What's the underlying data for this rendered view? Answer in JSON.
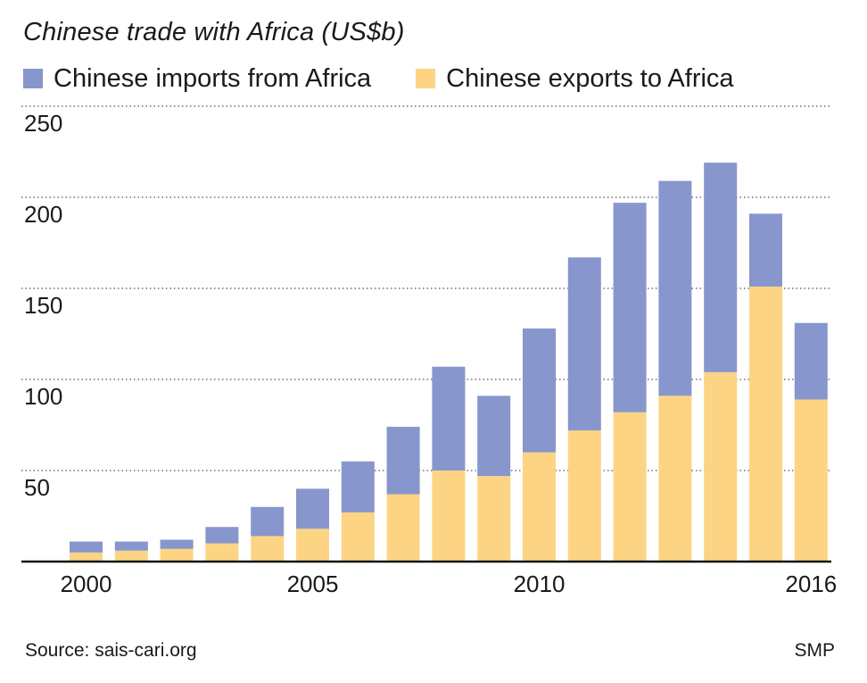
{
  "title": "Chinese trade with Africa (US$b)",
  "source": "Source: sais-cari.org",
  "credit": "SMP",
  "colors": {
    "imports": "#8796cc",
    "exports": "#fdd484",
    "grid": "#555555",
    "axis": "#111111"
  },
  "chart_data": {
    "type": "bar",
    "stacked": true,
    "title": "Chinese trade with Africa (US$b)",
    "xlabel": "",
    "ylabel": "",
    "ylim": [
      0,
      250
    ],
    "yticks": [
      50,
      100,
      150,
      200,
      250
    ],
    "x_tick_labels": [
      {
        "category": "2000",
        "label": "2000"
      },
      {
        "category": "2005",
        "label": "2005"
      },
      {
        "category": "2010",
        "label": "2010"
      },
      {
        "category": "2016",
        "label": "2016"
      }
    ],
    "legend_position": "top",
    "grid": "horizontal dotted",
    "categories": [
      "2000",
      "2001",
      "2002",
      "2003",
      "2004",
      "2005",
      "2006",
      "2007",
      "2008",
      "2009",
      "2010",
      "2011",
      "2012",
      "2013",
      "2014",
      "2015",
      "2016"
    ],
    "series": [
      {
        "name": "Chinese exports to Africa",
        "values": [
          5,
          6,
          7,
          10,
          14,
          18,
          27,
          37,
          50,
          47,
          60,
          72,
          82,
          91,
          104,
          151,
          89
        ]
      },
      {
        "name": "Chinese imports from Africa",
        "values": [
          6,
          5,
          5,
          9,
          16,
          22,
          28,
          37,
          57,
          44,
          68,
          95,
          115,
          118,
          115,
          40,
          42
        ]
      }
    ]
  }
}
